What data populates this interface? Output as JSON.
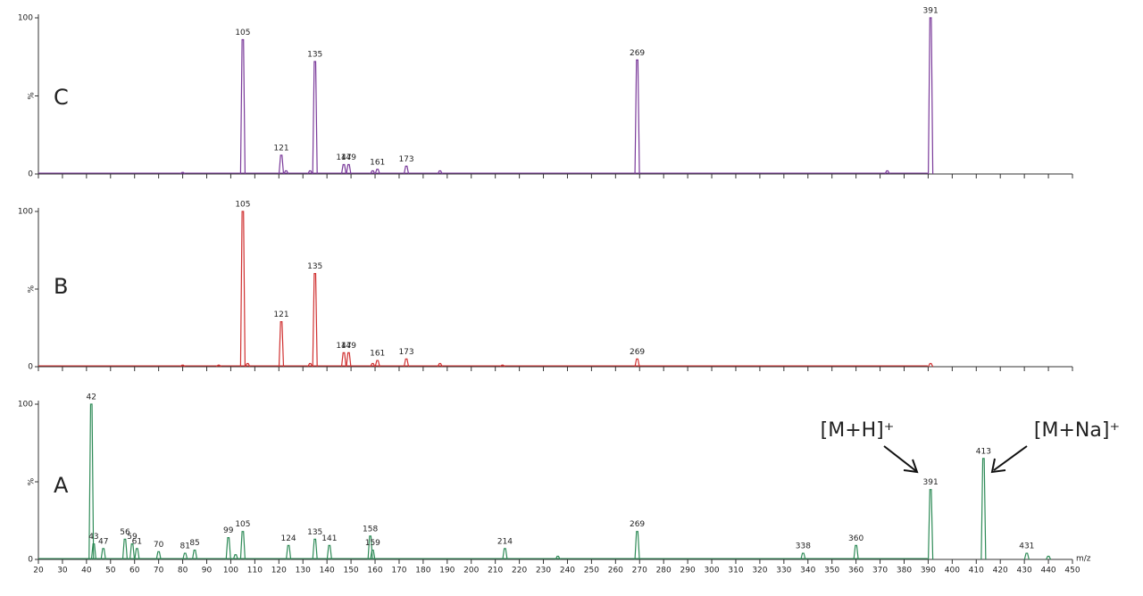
{
  "chart_data": [
    {
      "type": "spectrum",
      "label": "C",
      "color": "#7a3a9a",
      "x": [
        80,
        105,
        121,
        123,
        133,
        135,
        147,
        149,
        159,
        161,
        173,
        187,
        269,
        373,
        391
      ],
      "values": [
        1,
        86,
        12,
        2,
        2,
        72,
        6,
        6,
        2,
        3,
        5,
        2,
        73,
        2,
        100
      ],
      "labels": [
        105,
        121,
        135,
        147,
        149,
        161,
        173,
        269,
        391
      ],
      "xlim": [
        20,
        450
      ],
      "ylim": [
        0,
        100
      ],
      "yticks": [
        0,
        {
          "value": 50,
          "label": "%"
        },
        100
      ]
    },
    {
      "type": "spectrum",
      "label": "B",
      "color": "#d03030",
      "x": [
        80,
        95,
        105,
        107,
        121,
        133,
        135,
        147,
        149,
        159,
        161,
        173,
        187,
        213,
        269,
        391
      ],
      "values": [
        1,
        1,
        100,
        2,
        29,
        2,
        60,
        9,
        9,
        2,
        4,
        5,
        2,
        1,
        5,
        2
      ],
      "labels": [
        105,
        121,
        135,
        147,
        149,
        161,
        173,
        269
      ],
      "xlim": [
        20,
        450
      ],
      "ylim": [
        0,
        100
      ],
      "yticks": [
        0,
        {
          "value": 50,
          "label": "%"
        },
        100
      ]
    },
    {
      "type": "spectrum",
      "label": "A",
      "color": "#2e8b57",
      "x": [
        42,
        43,
        47,
        56,
        59,
        61,
        70,
        81,
        85,
        99,
        102,
        105,
        124,
        135,
        141,
        158,
        159,
        214,
        236,
        269,
        338,
        360,
        391,
        413,
        431,
        440
      ],
      "values": [
        100,
        10,
        7,
        13,
        10,
        7,
        5,
        4,
        6,
        14,
        3,
        18,
        9,
        13,
        9,
        15,
        6,
        7,
        2,
        18,
        4,
        9,
        45,
        65,
        4,
        2
      ],
      "labels": [
        42,
        43,
        47,
        56,
        59,
        61,
        70,
        81,
        85,
        99,
        105,
        124,
        135,
        141,
        158,
        159,
        214,
        269,
        338,
        360,
        391,
        413,
        431
      ],
      "xlim": [
        20,
        450
      ],
      "ylim": [
        0,
        100
      ],
      "yticks": [
        0,
        {
          "value": 50,
          "label": "%"
        },
        100
      ],
      "xticks": [
        20,
        30,
        40,
        50,
        60,
        70,
        80,
        90,
        100,
        110,
        120,
        130,
        140,
        150,
        160,
        170,
        180,
        190,
        200,
        210,
        220,
        230,
        240,
        250,
        260,
        270,
        280,
        290,
        300,
        310,
        320,
        330,
        340,
        350,
        360,
        370,
        380,
        390,
        400,
        410,
        420,
        430,
        440,
        450
      ],
      "xlabel": "m/z",
      "annotations": [
        "[M+H]⁺",
        "[M+Na]⁺"
      ]
    }
  ]
}
